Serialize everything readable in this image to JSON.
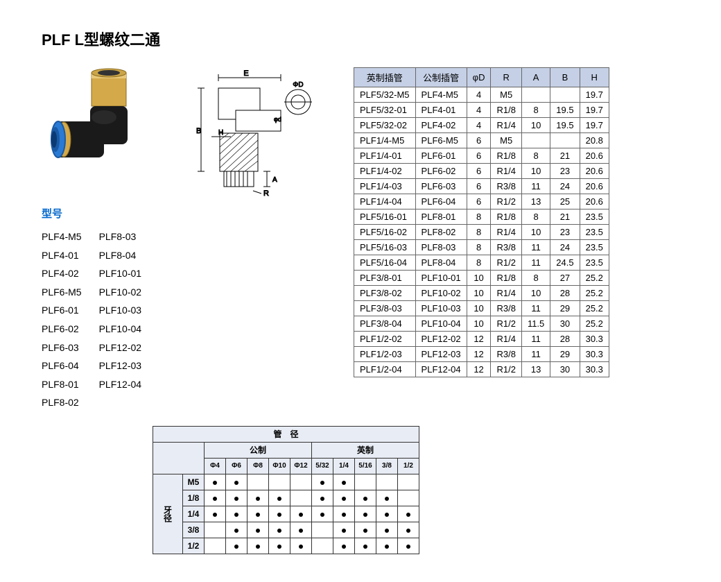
{
  "title": "PLF L型螺纹二通",
  "model_label": "型号",
  "models": {
    "col1": [
      "PLF4-M5",
      "PLF4-01",
      "PLF4-02",
      "PLF6-M5",
      "PLF6-01",
      "PLF6-02",
      "PLF6-03",
      "PLF6-04",
      "PLF8-01",
      "PLF8-02"
    ],
    "col2": [
      "PLF8-03",
      "PLF8-04",
      "PLF10-01",
      "PLF10-02",
      "PLF10-03",
      "PLF10-04",
      "PLF12-02",
      "PLF12-03",
      "PLF12-04"
    ]
  },
  "compat": {
    "title": "管　径",
    "metric_label": "公制",
    "imperial_label": "英制",
    "side_label": "牙径",
    "metric_cols": [
      "Φ4",
      "Φ6",
      "Φ8",
      "Φ10",
      "Φ12"
    ],
    "imperial_cols": [
      "5/32",
      "1/4",
      "5/16",
      "3/8",
      "1/2"
    ],
    "row_labels": [
      "M5",
      "1/8",
      "1/4",
      "3/8",
      "1/2"
    ],
    "metric_dots": [
      [
        1,
        1,
        0,
        0,
        0
      ],
      [
        1,
        1,
        1,
        1,
        0
      ],
      [
        1,
        1,
        1,
        1,
        1
      ],
      [
        0,
        1,
        1,
        1,
        1
      ],
      [
        0,
        1,
        1,
        1,
        1
      ]
    ],
    "imperial_dots": [
      [
        1,
        1,
        0,
        0,
        0
      ],
      [
        1,
        1,
        1,
        1,
        0
      ],
      [
        1,
        1,
        1,
        1,
        1
      ],
      [
        0,
        1,
        1,
        1,
        1
      ],
      [
        0,
        1,
        1,
        1,
        1
      ]
    ]
  },
  "spec": {
    "headers": [
      "英制插管",
      "公制插管",
      "φD",
      "R",
      "A",
      "B",
      "H"
    ],
    "rows": [
      [
        "PLF5/32-M5",
        "PLF4-M5",
        "4",
        "M5",
        "",
        "",
        "19.7"
      ],
      [
        "PLF5/32-01",
        "PLF4-01",
        "4",
        "R1/8",
        "8",
        "19.5",
        "19.7"
      ],
      [
        "PLF5/32-02",
        "PLF4-02",
        "4",
        "R1/4",
        "10",
        "19.5",
        "19.7"
      ],
      [
        "PLF1/4-M5",
        "PLF6-M5",
        "6",
        "M5",
        "",
        "",
        "20.8"
      ],
      [
        "PLF1/4-01",
        "PLF6-01",
        "6",
        "R1/8",
        "8",
        "21",
        "20.6"
      ],
      [
        "PLF1/4-02",
        "PLF6-02",
        "6",
        "R1/4",
        "10",
        "23",
        "20.6"
      ],
      [
        "PLF1/4-03",
        "PLF6-03",
        "6",
        "R3/8",
        "11",
        "24",
        "20.6"
      ],
      [
        "PLF1/4-04",
        "PLF6-04",
        "6",
        "R1/2",
        "13",
        "25",
        "20.6"
      ],
      [
        "PLF5/16-01",
        "PLF8-01",
        "8",
        "R1/8",
        "8",
        "21",
        "23.5"
      ],
      [
        "PLF5/16-02",
        "PLF8-02",
        "8",
        "R1/4",
        "10",
        "23",
        "23.5"
      ],
      [
        "PLF5/16-03",
        "PLF8-03",
        "8",
        "R3/8",
        "11",
        "24",
        "23.5"
      ],
      [
        "PLF5/16-04",
        "PLF8-04",
        "8",
        "R1/2",
        "11",
        "24.5",
        "23.5"
      ],
      [
        "PLF3/8-01",
        "PLF10-01",
        "10",
        "R1/8",
        "8",
        "27",
        "25.2"
      ],
      [
        "PLF3/8-02",
        "PLF10-02",
        "10",
        "R1/4",
        "10",
        "28",
        "25.2"
      ],
      [
        "PLF3/8-03",
        "PLF10-03",
        "10",
        "R3/8",
        "11",
        "29",
        "25.2"
      ],
      [
        "PLF3/8-04",
        "PLF10-04",
        "10",
        "R1/2",
        "11.5",
        "30",
        "25.2"
      ],
      [
        "PLF1/2-02",
        "PLF12-02",
        "12",
        "R1/4",
        "11",
        "28",
        "30.3"
      ],
      [
        "PLF1/2-03",
        "PLF12-03",
        "12",
        "R3/8",
        "11",
        "29",
        "30.3"
      ],
      [
        "PLF1/2-04",
        "PLF12-04",
        "12",
        "R1/2",
        "13",
        "30",
        "30.3"
      ]
    ]
  },
  "diagram_labels": {
    "E": "E",
    "D": "ΦD",
    "d": "φd",
    "H": "H",
    "B": "B",
    "A": "A",
    "R": "R"
  },
  "colors": {
    "brass": "#d4a94a",
    "brass_dark": "#b8923a",
    "black": "#1a1a1a",
    "blue": "#2a7ad4",
    "blue_dark": "#1a5aa4",
    "header_bg": "#c5d0e6",
    "compat_bg": "#e8ecf4"
  }
}
